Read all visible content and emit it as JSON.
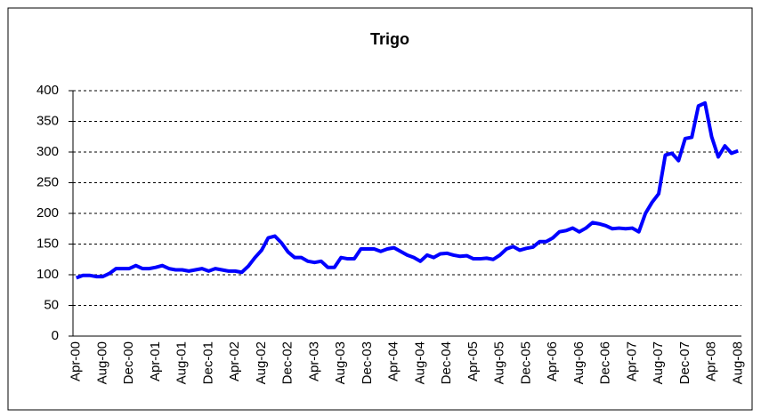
{
  "chart_data": {
    "type": "line",
    "title": "Trigo",
    "categories": [
      "Apr-00",
      null,
      null,
      null,
      "Aug-00",
      null,
      null,
      null,
      "Dec-00",
      null,
      null,
      null,
      "Apr-01",
      null,
      null,
      null,
      "Aug-01",
      null,
      null,
      null,
      "Dec-01",
      null,
      null,
      null,
      "Apr-02",
      null,
      null,
      null,
      "Aug-02",
      null,
      null,
      null,
      "Dec-02",
      null,
      null,
      null,
      "Apr-03",
      null,
      null,
      null,
      "Aug-03",
      null,
      null,
      null,
      "Dec-03",
      null,
      null,
      null,
      "Apr-04",
      null,
      null,
      null,
      "Aug-04",
      null,
      null,
      null,
      "Dec-04",
      null,
      null,
      null,
      "Apr-05",
      null,
      null,
      null,
      "Aug-05",
      null,
      null,
      null,
      "Dec-05",
      null,
      null,
      null,
      "Apr-06",
      null,
      null,
      null,
      "Aug-06",
      null,
      null,
      null,
      "Dec-06",
      null,
      null,
      null,
      "Apr-07",
      null,
      null,
      null,
      "Aug-07",
      null,
      null,
      null,
      "Dec-07",
      null,
      null,
      null,
      "Apr-08",
      null,
      null,
      null,
      "Aug-08"
    ],
    "values": [
      95,
      99,
      99,
      97,
      97,
      102,
      110,
      110,
      110,
      115,
      110,
      110,
      112,
      115,
      110,
      108,
      108,
      106,
      108,
      110,
      106,
      110,
      108,
      106,
      106,
      104,
      114,
      128,
      140,
      160,
      163,
      152,
      137,
      128,
      128,
      122,
      120,
      122,
      112,
      112,
      128,
      126,
      126,
      142,
      142,
      142,
      138,
      142,
      144,
      138,
      132,
      128,
      122,
      132,
      128,
      134,
      135,
      132,
      130,
      131,
      126,
      126,
      127,
      125,
      132,
      142,
      146,
      140,
      143,
      145,
      154,
      154,
      160,
      170,
      172,
      176,
      170,
      176,
      185,
      183,
      180,
      175,
      176,
      175,
      176,
      170,
      200,
      218,
      232,
      295,
      298,
      286,
      322,
      324,
      375,
      380,
      325,
      292,
      310,
      298,
      302
    ],
    "color": "#0000ff",
    "ylim": [
      0,
      400
    ],
    "yticks": [
      0,
      50,
      100,
      150,
      200,
      250,
      300,
      350,
      400
    ],
    "grid": true
  }
}
